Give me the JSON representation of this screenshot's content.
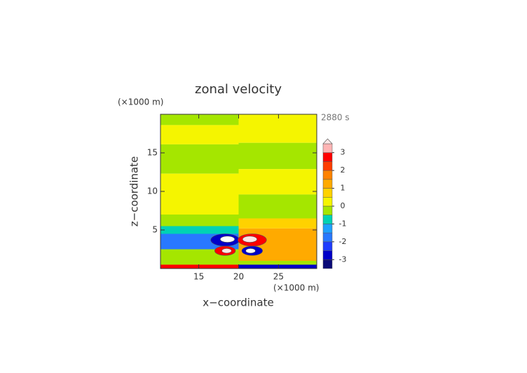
{
  "chart_data": {
    "type": "contour",
    "title": "zonal velocity",
    "time_label": "2880 s",
    "x_label": "x−coordinate",
    "y_label": "z−coordinate",
    "x_unit": "(×1000 m)",
    "y_unit": "(×1000 m)",
    "xlim": [
      10.2,
      29.8
    ],
    "ylim": [
      0,
      20
    ],
    "xticks": [
      15,
      20,
      25
    ],
    "yticks": [
      5,
      10,
      15
    ],
    "levels": [
      -3.5,
      -3,
      -2.5,
      -2,
      -1.5,
      -1,
      -0.5,
      0,
      0.5,
      1,
      1.5,
      2,
      2.5,
      3,
      3.5
    ],
    "colors": [
      "#0a0a78",
      "#0000c8",
      "#1e3cff",
      "#2878ff",
      "#1ea0ff",
      "#00d2b4",
      "#a5e600",
      "#f5f500",
      "#ffd200",
      "#ffaa00",
      "#ff8200",
      "#ff3c00",
      "#ff0000",
      "#ffb4b4"
    ],
    "over_color": "#ffe6e6",
    "under_color": "#ffffff",
    "colorbar_ticks": [
      3,
      2,
      1,
      0,
      -1,
      -2,
      -3
    ],
    "regions": [
      {
        "x": [
          10.2,
          20
        ],
        "z": [
          18.6,
          20
        ],
        "value": -0.3
      },
      {
        "x": [
          10.2,
          20
        ],
        "z": [
          16.1,
          18.6
        ],
        "value": 0.3
      },
      {
        "x": [
          10.2,
          20
        ],
        "z": [
          12.3,
          16.1
        ],
        "value": -0.3
      },
      {
        "x": [
          10.2,
          20
        ],
        "z": [
          7,
          12.3
        ],
        "value": 0.3
      },
      {
        "x": [
          10.2,
          20
        ],
        "z": [
          5.5,
          7
        ],
        "value": -0.3
      },
      {
        "x": [
          10.2,
          20
        ],
        "z": [
          4.5,
          5.5
        ],
        "value": -0.8
      },
      {
        "x": [
          10.2,
          20
        ],
        "z": [
          2.5,
          4.5
        ],
        "value": -1.7
      },
      {
        "x": [
          10.2,
          20
        ],
        "z": [
          0.5,
          2.5
        ],
        "value": -0.3
      },
      {
        "x": [
          10.2,
          20
        ],
        "z": [
          0,
          0.5
        ],
        "value": 2.7
      },
      {
        "x": [
          20,
          29.8
        ],
        "z": [
          16.3,
          20
        ],
        "value": 0.3
      },
      {
        "x": [
          20,
          29.8
        ],
        "z": [
          12.9,
          16.3
        ],
        "value": -0.3
      },
      {
        "x": [
          20,
          29.8
        ],
        "z": [
          9.6,
          12.9
        ],
        "value": 0.3
      },
      {
        "x": [
          20,
          29.8
        ],
        "z": [
          6.5,
          9.6
        ],
        "value": -0.3
      },
      {
        "x": [
          20,
          29.8
        ],
        "z": [
          5.2,
          6.5
        ],
        "value": 0.7
      },
      {
        "x": [
          20,
          29.8
        ],
        "z": [
          1,
          5.2
        ],
        "value": 1.2
      },
      {
        "x": [
          20,
          29.8
        ],
        "z": [
          0.5,
          1
        ],
        "value": -0.3
      },
      {
        "x": [
          20,
          29.8
        ],
        "z": [
          0,
          0.5
        ],
        "value": -2.7
      }
    ],
    "cells": [
      {
        "cx": 18.3,
        "cz": 3.7,
        "rx": 1.8,
        "rz": 0.8,
        "value": -2.7
      },
      {
        "cx": 18.6,
        "cz": 3.8,
        "rx": 0.9,
        "rz": 0.4,
        "value": -4
      },
      {
        "cx": 21.7,
        "cz": 3.7,
        "rx": 1.8,
        "rz": 0.8,
        "value": 2.7
      },
      {
        "cx": 21.4,
        "cz": 3.8,
        "rx": 0.9,
        "rz": 0.4,
        "value": 4
      },
      {
        "cx": 18.3,
        "cz": 2.3,
        "rx": 1.3,
        "rz": 0.6,
        "value": 2.7
      },
      {
        "cx": 18.5,
        "cz": 2.3,
        "rx": 0.6,
        "rz": 0.3,
        "value": 4
      },
      {
        "cx": 21.7,
        "cz": 2.3,
        "rx": 1.3,
        "rz": 0.6,
        "value": -2.7
      },
      {
        "cx": 21.5,
        "cz": 2.3,
        "rx": 0.6,
        "rz": 0.3,
        "value": -4
      }
    ]
  }
}
